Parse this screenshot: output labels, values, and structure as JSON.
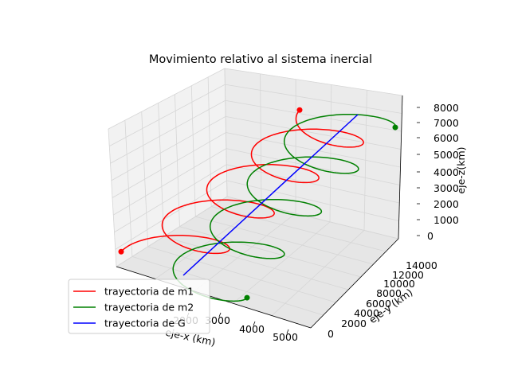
{
  "chart_data": {
    "type": "line",
    "projection": "3d",
    "title": "Movimiento relativo al sistema inercial",
    "xlabel": "eje-x (km)",
    "ylabel": "eje-y (km)",
    "zlabel": "eje-z(km)",
    "x_ticks": [
      "2000",
      "3000",
      "4000",
      "5000"
    ],
    "y_ticks": [
      "0",
      "2000",
      "4000",
      "6000",
      "8000",
      "10000",
      "12000",
      "14000"
    ],
    "z_ticks": [
      "0",
      "1000",
      "2000",
      "3000",
      "4000",
      "5000",
      "6000",
      "7000",
      "8000"
    ],
    "grid": true,
    "legend_position": "lower-left",
    "series": [
      {
        "name": "trayectoria de m1",
        "color": "#ff0000",
        "turns": 4,
        "start_marker": true,
        "end_marker": true
      },
      {
        "name": "trayectoria de m2",
        "color": "#008000",
        "turns": 4,
        "start_marker": true,
        "end_marker": true
      },
      {
        "name": "trayectoria de G",
        "color": "#0000ff",
        "turns": 0,
        "start_marker": false,
        "end_marker": false
      }
    ]
  }
}
